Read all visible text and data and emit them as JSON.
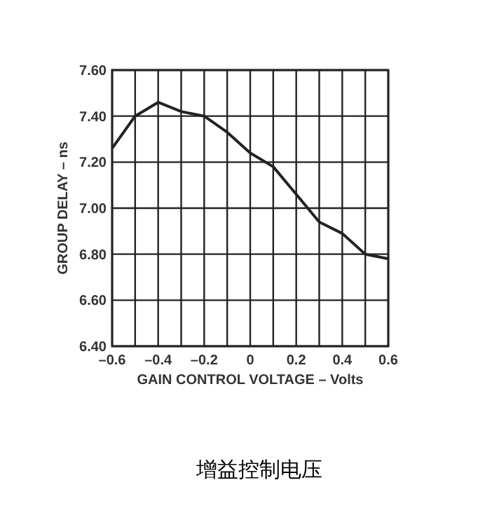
{
  "chart_data": {
    "type": "line",
    "xlabel": "GAIN CONTROL VOLTAGE – Volts",
    "ylabel": "GROUP DELAY – ns",
    "x": [
      -0.6,
      -0.5,
      -0.4,
      -0.3,
      -0.2,
      -0.1,
      0,
      0.1,
      0.2,
      0.3,
      0.4,
      0.5,
      0.6
    ],
    "series": [
      {
        "color": "#222222",
        "values": [
          7.26,
          7.4,
          7.46,
          7.42,
          7.4,
          7.33,
          7.24,
          7.18,
          7.06,
          6.94,
          6.89,
          6.8,
          6.78
        ]
      }
    ],
    "xlim": [
      -0.6,
      0.6
    ],
    "xticks": [
      {
        "value": -0.6,
        "label": "–0.6"
      },
      {
        "value": -0.5,
        "label": null
      },
      {
        "value": -0.4,
        "label": "–0.4"
      },
      {
        "value": -0.3,
        "label": null
      },
      {
        "value": -0.2,
        "label": "–0.2"
      },
      {
        "value": -0.1,
        "label": null
      },
      0,
      {
        "value": 0.1,
        "label": null
      },
      {
        "value": 0.2,
        "label": "0.2"
      },
      {
        "value": 0.3,
        "label": null
      },
      {
        "value": 0.4,
        "label": "0.4"
      },
      {
        "value": 0.5,
        "label": null
      },
      {
        "value": 0.6,
        "label": "0.6"
      }
    ],
    "ylim": [
      6.4,
      7.6
    ],
    "yticks": [
      {
        "value": 6.4,
        "label": "6.40"
      },
      {
        "value": 6.6,
        "label": "6.60"
      },
      {
        "value": 6.8,
        "label": "6.80"
      },
      {
        "value": 7.0,
        "label": "7.00"
      },
      {
        "value": 7.2,
        "label": "7.20"
      },
      {
        "value": 7.4,
        "label": "7.40"
      },
      {
        "value": 7.6,
        "label": "7.60"
      }
    ],
    "grid": true,
    "marker": "none",
    "line_style": "solid",
    "annotations": [
      "增益控制电压"
    ]
  }
}
